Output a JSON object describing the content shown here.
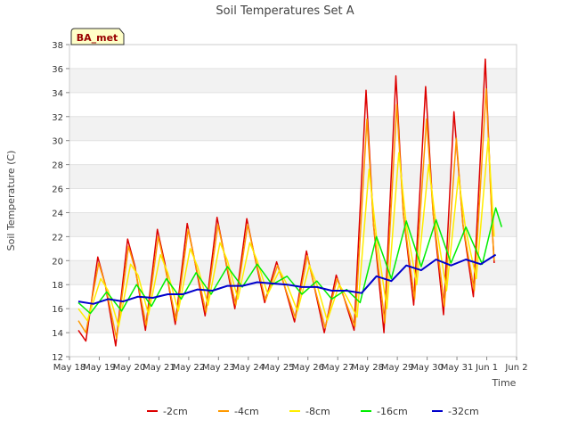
{
  "chart_data": {
    "type": "line",
    "title": "Soil Temperatures Set A",
    "xlabel": "Time",
    "ylabel": "Soil Temperature (C)",
    "station_label": "BA_met",
    "ylim": [
      12,
      38
    ],
    "yticks": [
      12,
      14,
      16,
      18,
      20,
      22,
      24,
      26,
      28,
      30,
      32,
      34,
      36,
      38
    ],
    "xlim": [
      0,
      15
    ],
    "xticks": [
      {
        "x": 0,
        "label": "May 18"
      },
      {
        "x": 1,
        "label": "May 19"
      },
      {
        "x": 2,
        "label": "May 20"
      },
      {
        "x": 3,
        "label": "May 21"
      },
      {
        "x": 4,
        "label": "May 22"
      },
      {
        "x": 5,
        "label": "May 23"
      },
      {
        "x": 6,
        "label": "May 24"
      },
      {
        "x": 7,
        "label": "May 25"
      },
      {
        "x": 8,
        "label": "May 26"
      },
      {
        "x": 9,
        "label": "May 27"
      },
      {
        "x": 10,
        "label": "May 28"
      },
      {
        "x": 11,
        "label": "May 29"
      },
      {
        "x": 12,
        "label": "May 30"
      },
      {
        "x": 13,
        "label": "May 31"
      },
      {
        "x": 14,
        "label": "Jun 1"
      },
      {
        "x": 15,
        "label": "Jun 2"
      }
    ],
    "grid": "horizontal bands",
    "legend": "bottom",
    "series": [
      {
        "name": "-2cm",
        "color": "#dd0000",
        "width": 1.5,
        "points": [
          [
            0.3,
            14.2
          ],
          [
            0.55,
            13.3
          ],
          [
            0.95,
            20.3
          ],
          [
            1.2,
            18.0
          ],
          [
            1.55,
            12.9
          ],
          [
            1.95,
            21.8
          ],
          [
            2.2,
            19.5
          ],
          [
            2.55,
            14.2
          ],
          [
            2.95,
            22.6
          ],
          [
            3.2,
            19.8
          ],
          [
            3.55,
            14.7
          ],
          [
            3.95,
            23.1
          ],
          [
            4.2,
            20.0
          ],
          [
            4.55,
            15.4
          ],
          [
            4.95,
            23.6
          ],
          [
            5.2,
            20.5
          ],
          [
            5.55,
            16.0
          ],
          [
            5.95,
            23.5
          ],
          [
            6.2,
            20.5
          ],
          [
            6.55,
            16.5
          ],
          [
            6.95,
            19.9
          ],
          [
            7.2,
            18.0
          ],
          [
            7.55,
            14.9
          ],
          [
            7.95,
            20.8
          ],
          [
            8.2,
            18.0
          ],
          [
            8.55,
            14.0
          ],
          [
            8.95,
            18.8
          ],
          [
            9.2,
            17.0
          ],
          [
            9.55,
            14.2
          ],
          [
            9.95,
            34.2
          ],
          [
            10.2,
            23.0
          ],
          [
            10.55,
            14.0
          ],
          [
            10.95,
            35.4
          ],
          [
            11.2,
            24.0
          ],
          [
            11.55,
            16.3
          ],
          [
            11.95,
            34.5
          ],
          [
            12.2,
            24.0
          ],
          [
            12.55,
            15.5
          ],
          [
            12.9,
            32.4
          ],
          [
            13.2,
            23.0
          ],
          [
            13.55,
            17.0
          ],
          [
            13.95,
            36.8
          ],
          [
            14.2,
            22.0
          ],
          [
            14.25,
            19.8
          ]
        ]
      },
      {
        "name": "-4cm",
        "color": "#ff9900",
        "width": 1.5,
        "points": [
          [
            0.3,
            15.0
          ],
          [
            0.55,
            14.0
          ],
          [
            0.98,
            19.8
          ],
          [
            1.2,
            18.0
          ],
          [
            1.58,
            13.5
          ],
          [
            1.98,
            21.2
          ],
          [
            2.2,
            19.3
          ],
          [
            2.58,
            14.6
          ],
          [
            2.98,
            22.0
          ],
          [
            3.2,
            19.5
          ],
          [
            3.58,
            15.0
          ],
          [
            3.98,
            22.6
          ],
          [
            4.2,
            20.0
          ],
          [
            4.58,
            15.7
          ],
          [
            4.98,
            23.0
          ],
          [
            5.2,
            20.5
          ],
          [
            5.58,
            16.3
          ],
          [
            5.98,
            23.0
          ],
          [
            6.2,
            20.5
          ],
          [
            6.58,
            16.7
          ],
          [
            6.98,
            19.6
          ],
          [
            7.2,
            18.0
          ],
          [
            7.58,
            15.2
          ],
          [
            7.98,
            20.4
          ],
          [
            8.2,
            18.0
          ],
          [
            8.58,
            14.4
          ],
          [
            8.98,
            18.5
          ],
          [
            9.2,
            17.0
          ],
          [
            9.58,
            14.5
          ],
          [
            9.98,
            31.8
          ],
          [
            10.2,
            23.0
          ],
          [
            10.58,
            14.8
          ],
          [
            10.98,
            33.0
          ],
          [
            11.2,
            24.0
          ],
          [
            11.58,
            16.8
          ],
          [
            11.98,
            31.8
          ],
          [
            12.2,
            24.0
          ],
          [
            12.58,
            16.2
          ],
          [
            12.98,
            30.2
          ],
          [
            13.2,
            23.0
          ],
          [
            13.58,
            17.5
          ],
          [
            13.98,
            34.3
          ],
          [
            14.2,
            22.0
          ],
          [
            14.25,
            20.0
          ]
        ]
      },
      {
        "name": "-8cm",
        "color": "#ffee00",
        "width": 1.5,
        "points": [
          [
            0.3,
            16.0
          ],
          [
            0.6,
            15.0
          ],
          [
            1.05,
            18.5
          ],
          [
            1.3,
            17.5
          ],
          [
            1.65,
            14.5
          ],
          [
            2.05,
            19.7
          ],
          [
            2.3,
            18.8
          ],
          [
            2.65,
            15.5
          ],
          [
            3.05,
            20.5
          ],
          [
            3.3,
            19.0
          ],
          [
            3.65,
            15.8
          ],
          [
            4.05,
            21.0
          ],
          [
            4.3,
            19.5
          ],
          [
            4.65,
            16.3
          ],
          [
            5.05,
            21.5
          ],
          [
            5.3,
            20.0
          ],
          [
            5.65,
            16.8
          ],
          [
            6.05,
            21.5
          ],
          [
            6.3,
            20.0
          ],
          [
            6.65,
            17.2
          ],
          [
            7.05,
            19.2
          ],
          [
            7.3,
            18.0
          ],
          [
            7.65,
            15.8
          ],
          [
            8.05,
            19.6
          ],
          [
            8.3,
            18.0
          ],
          [
            8.65,
            15.0
          ],
          [
            9.05,
            18.0
          ],
          [
            9.3,
            17.0
          ],
          [
            9.65,
            15.3
          ],
          [
            10.05,
            27.6
          ],
          [
            10.3,
            22.0
          ],
          [
            10.65,
            16.0
          ],
          [
            11.05,
            29.0
          ],
          [
            11.3,
            23.0
          ],
          [
            11.65,
            18.0
          ],
          [
            12.05,
            28.0
          ],
          [
            12.3,
            23.0
          ],
          [
            12.65,
            17.5
          ],
          [
            13.05,
            27.0
          ],
          [
            13.3,
            22.5
          ],
          [
            13.65,
            18.5
          ],
          [
            14.05,
            30.2
          ],
          [
            14.25,
            22.0
          ]
        ]
      },
      {
        "name": "-16cm",
        "color": "#00ee00",
        "width": 1.5,
        "points": [
          [
            0.3,
            16.5
          ],
          [
            0.7,
            15.6
          ],
          [
            1.25,
            17.4
          ],
          [
            1.75,
            15.8
          ],
          [
            2.25,
            18.0
          ],
          [
            2.75,
            16.2
          ],
          [
            3.25,
            18.5
          ],
          [
            3.75,
            16.8
          ],
          [
            4.25,
            19.0
          ],
          [
            4.75,
            17.2
          ],
          [
            5.3,
            19.5
          ],
          [
            5.8,
            17.8
          ],
          [
            6.3,
            19.7
          ],
          [
            6.8,
            18.0
          ],
          [
            7.3,
            18.7
          ],
          [
            7.8,
            17.2
          ],
          [
            8.3,
            18.3
          ],
          [
            8.8,
            16.8
          ],
          [
            9.3,
            17.6
          ],
          [
            9.75,
            16.5
          ],
          [
            10.3,
            22.0
          ],
          [
            10.8,
            18.5
          ],
          [
            11.3,
            23.3
          ],
          [
            11.8,
            19.5
          ],
          [
            12.3,
            23.4
          ],
          [
            12.8,
            19.8
          ],
          [
            13.3,
            22.8
          ],
          [
            13.85,
            19.7
          ],
          [
            14.3,
            24.4
          ],
          [
            14.5,
            22.8
          ]
        ]
      },
      {
        "name": "-32cm",
        "color": "#0000cc",
        "width": 2,
        "points": [
          [
            0.3,
            16.6
          ],
          [
            0.8,
            16.4
          ],
          [
            1.3,
            16.8
          ],
          [
            1.8,
            16.6
          ],
          [
            2.3,
            17.0
          ],
          [
            2.8,
            16.9
          ],
          [
            3.3,
            17.2
          ],
          [
            3.8,
            17.2
          ],
          [
            4.3,
            17.6
          ],
          [
            4.8,
            17.5
          ],
          [
            5.3,
            17.9
          ],
          [
            5.8,
            17.9
          ],
          [
            6.3,
            18.2
          ],
          [
            6.8,
            18.1
          ],
          [
            7.3,
            18.0
          ],
          [
            7.8,
            17.8
          ],
          [
            8.3,
            17.8
          ],
          [
            8.8,
            17.5
          ],
          [
            9.3,
            17.5
          ],
          [
            9.8,
            17.3
          ],
          [
            10.3,
            18.7
          ],
          [
            10.8,
            18.3
          ],
          [
            11.3,
            19.6
          ],
          [
            11.8,
            19.2
          ],
          [
            12.3,
            20.1
          ],
          [
            12.8,
            19.6
          ],
          [
            13.3,
            20.1
          ],
          [
            13.8,
            19.7
          ],
          [
            14.3,
            20.5
          ]
        ]
      }
    ]
  }
}
